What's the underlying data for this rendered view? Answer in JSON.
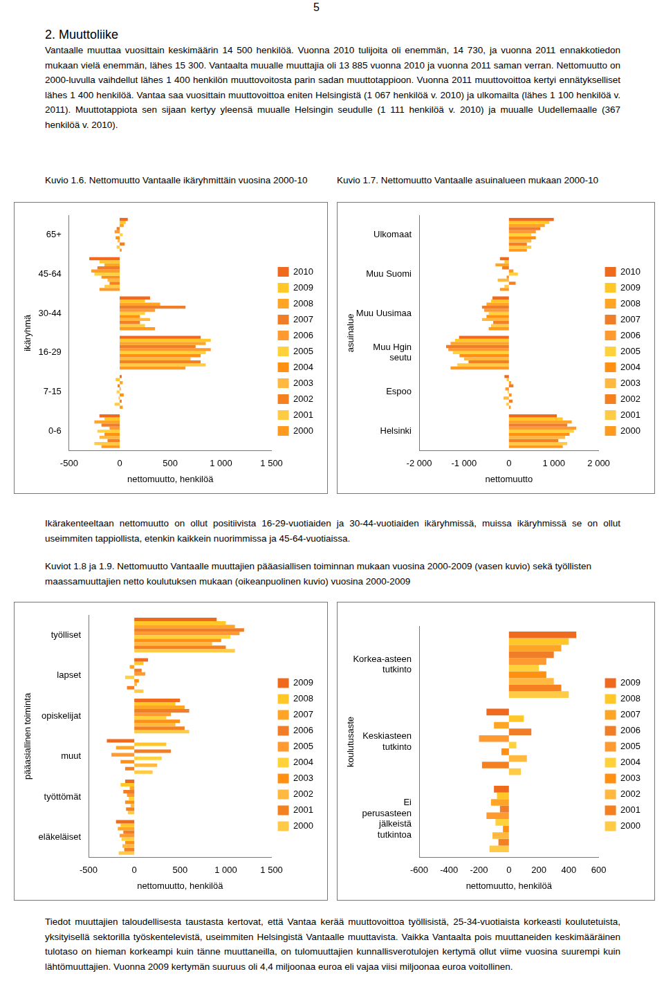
{
  "document": {
    "page_number": "5",
    "heading": "2. Muuttoliike",
    "paragraphs": [
      "Vantaalle muuttaa vuosittain keskimäärin 14 500 henkilöä. Vuonna 2010 tulijoita oli enemmän, 14 730, ja vuonna 2011 ennakkotiedon mukaan vielä enemmän, lähes 15 300. Vantaalta muualle muuttajia oli 13 885 vuonna 2010 ja vuonna 2011 saman verran. Nettomuutto on 2000-luvulla vaihdellut lähes 1 400 henkilön muuttovoitosta parin sadan muuttotappioon. Vuonna 2011 muuttovoittoa kertyi ennätykselliset lähes 1 400 henkilöä. Vantaa saa vuosittain muuttovoittoa eniten Helsingistä (1 067 henkilöä v. 2010) ja ulkomailta (lähes 1 100 henkilöä v. 2011). Muuttotappiota sen sijaan kertyy yleensä muualle Helsingin seudulle (1 111 henkilöä v. 2010) ja muualle Uudellemaalle (367 henkilöä v. 2010).",
      "Ikärakenteeltaan nettomuutto on ollut positiivista 16-29-vuotiaiden ja 30-44-vuotiaiden ikäryhmissä, muissa ikäryhmissä se on ollut useimmiten tappiollista, etenkin kaikkein nuorimmissa ja 45-64-vuotiaissa.",
      "Tiedot muuttajien taloudellisesta taustasta kertovat, että Vantaa kerää muuttovoittoa työllisistä, 25-34-vuotiaista korkeasti koulutetuista, yksityisellä sektorilla työskentelevistä, useimmiten Helsingistä Vantaalle muuttavista. Vaikka Vantaalta pois muuttaneiden keskimääräinen tulotaso on hieman korkeampi kuin tänne muuttaneilla, on tulomuuttajien kunnallisverotulojen kertymä ollut viime vuosina suurempi kuin lähtömuuttajien. Vuonna 2009 kertymän suuruus oli 4,4 miljoonaa euroa eli vajaa viisi miljoonaa euroa voitollinen."
    ],
    "captions": [
      "Kuvio 1.6. Nettomuutto Vantaalle ikäryhmittäin vuosina 2000-10",
      "Kuvio 1.7. Nettomuutto Vantaalle asuinalueen mukaan 2000-10",
      "Kuviot 1.8 ja 1.9. Nettomuutto Vantaalle muuttajien pääasiallisen toiminnan mukaan vuosina 2000-2009 (vasen kuvio) sekä työllisten maassamuuttajien netto koulutuksen mukaan (oikeanpuolinen kuvio) vuosina 2000-2009"
    ]
  },
  "chart_data": [
    {
      "type": "bar",
      "orientation": "horizontal",
      "grid": false,
      "legend": "right",
      "xlabel": "nettomuutto, henkilöä",
      "ylabel": "ikäryhmä",
      "xlim": [
        -500,
        1500
      ],
      "xticks": [
        -500,
        0,
        500,
        {
          "value": 1000,
          "label": "1 000"
        },
        {
          "value": 1500,
          "label": "1 500"
        }
      ],
      "categories": [
        "65+",
        "45-64",
        "30-44",
        "16-29",
        "7-15",
        "0-6"
      ],
      "series": [
        {
          "name": "2010",
          "color": "#f06a1e",
          "values": [
            80,
            -300,
            300,
            800,
            20,
            -200
          ]
        },
        {
          "name": "2009",
          "color": "#ffc828",
          "values": [
            60,
            -200,
            250,
            900,
            -40,
            -150
          ]
        },
        {
          "name": "2008",
          "color": "#ffa526",
          "values": [
            40,
            -150,
            400,
            850,
            30,
            -250
          ]
        },
        {
          "name": "2007",
          "color": "#f07d28",
          "values": [
            -30,
            -220,
            650,
            750,
            -20,
            -180
          ]
        },
        {
          "name": "2006",
          "color": "#ff9a30",
          "values": [
            -50,
            -280,
            350,
            900,
            10,
            -100
          ]
        },
        {
          "name": "2005",
          "color": "#ffd23c",
          "values": [
            30,
            -250,
            250,
            850,
            -30,
            -220
          ]
        },
        {
          "name": "2004",
          "color": "#ff9012",
          "values": [
            -40,
            -180,
            200,
            800,
            40,
            -150
          ]
        },
        {
          "name": "2003",
          "color": "#ffb840",
          "values": [
            -20,
            -120,
            300,
            700,
            -10,
            -200
          ]
        },
        {
          "name": "2002",
          "color": "#f58020",
          "values": [
            50,
            -100,
            200,
            800,
            20,
            -120
          ]
        },
        {
          "name": "2001",
          "color": "#ffcb46",
          "values": [
            -30,
            -150,
            250,
            850,
            -50,
            -250
          ]
        },
        {
          "name": "2000",
          "color": "#ff9a20",
          "values": [
            20,
            -200,
            350,
            650,
            30,
            -180
          ]
        }
      ]
    },
    {
      "type": "bar",
      "orientation": "horizontal",
      "grid": false,
      "legend": "right",
      "xlabel": "nettomuutto",
      "ylabel": "asuinalue",
      "xlim": [
        -2000,
        2000
      ],
      "xticks": [
        {
          "value": -2000,
          "label": "-2 000"
        },
        {
          "value": -1000,
          "label": "-1 000"
        },
        0,
        {
          "value": 1000,
          "label": "1 000"
        },
        {
          "value": 2000,
          "label": "2 000"
        }
      ],
      "categories": [
        "Ulkomaat",
        "Muu Suomi",
        "Muu Uusimaa",
        "Muu Hgin seutu",
        "Espoo",
        "Helsinki"
      ],
      "series": [
        {
          "name": "2010",
          "color": "#f06a1e",
          "values": [
            1000,
            -200,
            -367,
            -1111,
            -100,
            1067
          ]
        },
        {
          "name": "2009",
          "color": "#ffc828",
          "values": [
            900,
            -100,
            -400,
            -1200,
            -50,
            1200
          ]
        },
        {
          "name": "2008",
          "color": "#ffa526",
          "values": [
            800,
            -300,
            -500,
            -1300,
            50,
            1400
          ]
        },
        {
          "name": "2007",
          "color": "#f07d28",
          "values": [
            700,
            -150,
            -600,
            -1400,
            100,
            1300
          ]
        },
        {
          "name": "2006",
          "color": "#ff9a30",
          "values": [
            600,
            100,
            -550,
            -1350,
            -80,
            1500
          ]
        },
        {
          "name": "2005",
          "color": "#ffd23c",
          "values": [
            500,
            200,
            -450,
            -1250,
            -30,
            1450
          ]
        },
        {
          "name": "2004",
          "color": "#ff9012",
          "values": [
            600,
            -50,
            -500,
            -1100,
            60,
            1350
          ]
        },
        {
          "name": "2003",
          "color": "#ffb840",
          "values": [
            500,
            -250,
            -600,
            -1000,
            -120,
            1250
          ]
        },
        {
          "name": "2002",
          "color": "#f58020",
          "values": [
            400,
            150,
            -350,
            -900,
            80,
            1100
          ]
        },
        {
          "name": "2001",
          "color": "#ffcb46",
          "values": [
            500,
            -100,
            -400,
            -1150,
            -60,
            1300
          ]
        },
        {
          "name": "2000",
          "color": "#ff9a20",
          "values": [
            400,
            -200,
            -450,
            -1300,
            40,
            1200
          ]
        }
      ]
    },
    {
      "type": "bar",
      "orientation": "horizontal",
      "grid": false,
      "legend": "right",
      "xlabel": "nettomuutto, henkilöä",
      "ylabel": "pääasiallinen toiminta",
      "xlim": [
        -500,
        1500
      ],
      "xticks": [
        -500,
        0,
        500,
        {
          "value": 1000,
          "label": "1 000"
        },
        {
          "value": 1500,
          "label": "1 500"
        }
      ],
      "categories": [
        "työlliset",
        "lapset",
        "opiskelijat",
        "muut",
        "työttömät",
        "eläkeläiset"
      ],
      "series": [
        {
          "name": "2009",
          "color": "#f06a1e",
          "values": [
            900,
            150,
            500,
            -300,
            -100,
            -200
          ]
        },
        {
          "name": "2008",
          "color": "#ffc828",
          "values": [
            1000,
            100,
            450,
            350,
            -150,
            -150
          ]
        },
        {
          "name": "2007",
          "color": "#ffa526",
          "values": [
            1100,
            -50,
            550,
            -200,
            -50,
            -180
          ]
        },
        {
          "name": "2006",
          "color": "#f07d28",
          "values": [
            1200,
            80,
            600,
            400,
            -120,
            -120
          ]
        },
        {
          "name": "2005",
          "color": "#ff9a30",
          "values": [
            1150,
            120,
            400,
            -250,
            -80,
            -160
          ]
        },
        {
          "name": "2004",
          "color": "#ffd23c",
          "values": [
            1050,
            -100,
            350,
            300,
            -60,
            -140
          ]
        },
        {
          "name": "2003",
          "color": "#ff9012",
          "values": [
            950,
            50,
            500,
            -150,
            -100,
            -100
          ]
        },
        {
          "name": "2002",
          "color": "#ffb840",
          "values": [
            850,
            30,
            450,
            250,
            -40,
            -130
          ]
        },
        {
          "name": "2001",
          "color": "#f58020",
          "values": [
            1000,
            -80,
            550,
            -100,
            -90,
            -110
          ]
        },
        {
          "name": "2000",
          "color": "#ffcb46",
          "values": [
            1100,
            100,
            600,
            200,
            -70,
            -170
          ]
        }
      ]
    },
    {
      "type": "bar",
      "orientation": "horizontal",
      "grid": false,
      "legend": "right",
      "xlabel": "nettomuutto, henkilöä",
      "ylabel": "koulutusaste",
      "xlim": [
        -600,
        600
      ],
      "xticks": [
        -600,
        -400,
        -200,
        0,
        200,
        400,
        600
      ],
      "categories": [
        "Korkea-asteen tutkinto",
        "Keskiasteen tutkinto",
        "Ei perusasteen jälkeistä tutkintoa"
      ],
      "series": [
        {
          "name": "2009",
          "color": "#f06a1e",
          "values": [
            450,
            -150,
            -100
          ]
        },
        {
          "name": "2008",
          "color": "#ffc828",
          "values": [
            400,
            100,
            -80
          ]
        },
        {
          "name": "2007",
          "color": "#ffa526",
          "values": [
            350,
            -100,
            -120
          ]
        },
        {
          "name": "2006",
          "color": "#f07d28",
          "values": [
            300,
            150,
            -60
          ]
        },
        {
          "name": "2005",
          "color": "#ff9a30",
          "values": [
            250,
            -200,
            -150
          ]
        },
        {
          "name": "2004",
          "color": "#ffd23c",
          "values": [
            200,
            50,
            -90
          ]
        },
        {
          "name": "2003",
          "color": "#ff9012",
          "values": [
            250,
            -50,
            -40
          ]
        },
        {
          "name": "2002",
          "color": "#ffb840",
          "values": [
            300,
            120,
            -110
          ]
        },
        {
          "name": "2001",
          "color": "#f58020",
          "values": [
            350,
            -180,
            -70
          ]
        },
        {
          "name": "2000",
          "color": "#ffcb46",
          "values": [
            400,
            80,
            -130
          ]
        }
      ]
    }
  ]
}
